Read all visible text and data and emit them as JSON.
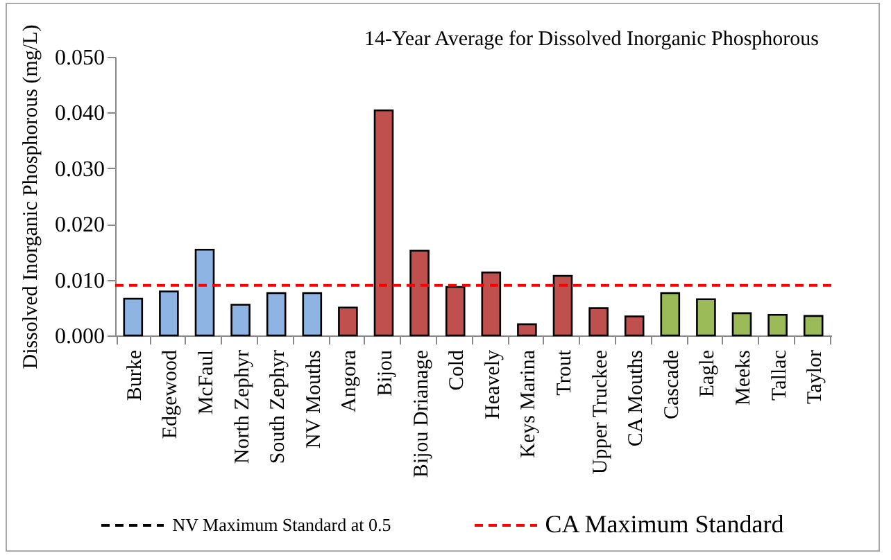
{
  "chart_data": {
    "type": "bar",
    "title": "14-Year Average for Dissolved Inorganic Phosphorous",
    "ylabel": "Dissolved Inorganic Phosphorous (mg/L)",
    "categories": [
      "Burke",
      "Edgewood",
      "McFaul",
      "North Zephyr",
      "South Zephyr",
      "NV Mouths",
      "Angora",
      "Bijou",
      "Bijou Drianage",
      "Cold",
      "Heavely",
      "Keys Marina",
      "Trout",
      "Upper Truckee",
      "CA Mouths",
      "Cascade",
      "Eagle",
      "Meeks",
      "Tallac",
      "Taylor"
    ],
    "values": [
      0.0066,
      0.0079,
      0.0154,
      0.0055,
      0.0076,
      0.0076,
      0.005,
      0.0404,
      0.0152,
      0.0087,
      0.0113,
      0.002,
      0.0107,
      0.0049,
      0.0034,
      0.0076,
      0.0065,
      0.004,
      0.0037,
      0.0035
    ],
    "colors": [
      "#8db4e2",
      "#8db4e2",
      "#8db4e2",
      "#8db4e2",
      "#8db4e2",
      "#8db4e2",
      "#c0504d",
      "#c0504d",
      "#c0504d",
      "#c0504d",
      "#c0504d",
      "#c0504d",
      "#c0504d",
      "#c0504d",
      "#c0504d",
      "#9bbb59",
      "#9bbb59",
      "#9bbb59",
      "#9bbb59",
      "#9bbb59"
    ],
    "ylim": [
      0,
      0.05
    ],
    "yticks": [
      {
        "value": 0,
        "label": "0.000"
      },
      {
        "value": 0.01,
        "label": "0.010"
      },
      {
        "value": 0.02,
        "label": "0.020"
      },
      {
        "value": 0.03,
        "label": "0.030"
      },
      {
        "value": 0.04,
        "label": "0.040"
      },
      {
        "value": 0.05,
        "label": "0.050"
      }
    ],
    "ref_lines": [
      {
        "axis": "y",
        "value": 0.009,
        "label": "CA Maximum Standard",
        "color": "#ff0000",
        "line_style": "dashed"
      }
    ],
    "annotations": [
      "NV Maximum Standard at 0.5"
    ],
    "grid": false,
    "legend": "bottom"
  }
}
